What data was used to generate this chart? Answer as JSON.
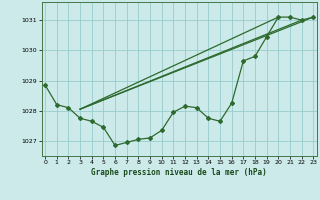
{
  "title": "Graphe pression niveau de la mer (hPa)",
  "bg_color": "#cceaea",
  "grid_color": "#99cccc",
  "line_color": "#2d6a2d",
  "x_ticks": [
    0,
    1,
    2,
    3,
    4,
    5,
    6,
    7,
    8,
    9,
    10,
    11,
    12,
    13,
    14,
    15,
    16,
    17,
    18,
    19,
    20,
    21,
    22,
    23
  ],
  "y_ticks": [
    1027,
    1028,
    1029,
    1030,
    1031
  ],
  "ylim": [
    1026.5,
    1031.6
  ],
  "xlim": [
    -0.3,
    23.3
  ],
  "series1_x": [
    0,
    1,
    2,
    3,
    4,
    5,
    6,
    7,
    8,
    9,
    10,
    11,
    12,
    13,
    14,
    15,
    16,
    17,
    18,
    19,
    20,
    21,
    22,
    23
  ],
  "series1_y": [
    1028.85,
    1028.2,
    1028.1,
    1027.75,
    1027.65,
    1027.45,
    1026.85,
    1026.95,
    1027.05,
    1027.1,
    1027.35,
    1027.95,
    1028.15,
    1028.1,
    1027.75,
    1027.65,
    1028.25,
    1029.65,
    1029.8,
    1030.45,
    1031.1,
    1031.1,
    1031.0,
    1031.1
  ],
  "series2_x": [
    3,
    23
  ],
  "series2_y": [
    1028.05,
    1031.1
  ],
  "series3_x": [
    3,
    22
  ],
  "series3_y": [
    1028.05,
    1031.0
  ],
  "series4_x": [
    3,
    20
  ],
  "series4_y": [
    1028.05,
    1031.1
  ]
}
